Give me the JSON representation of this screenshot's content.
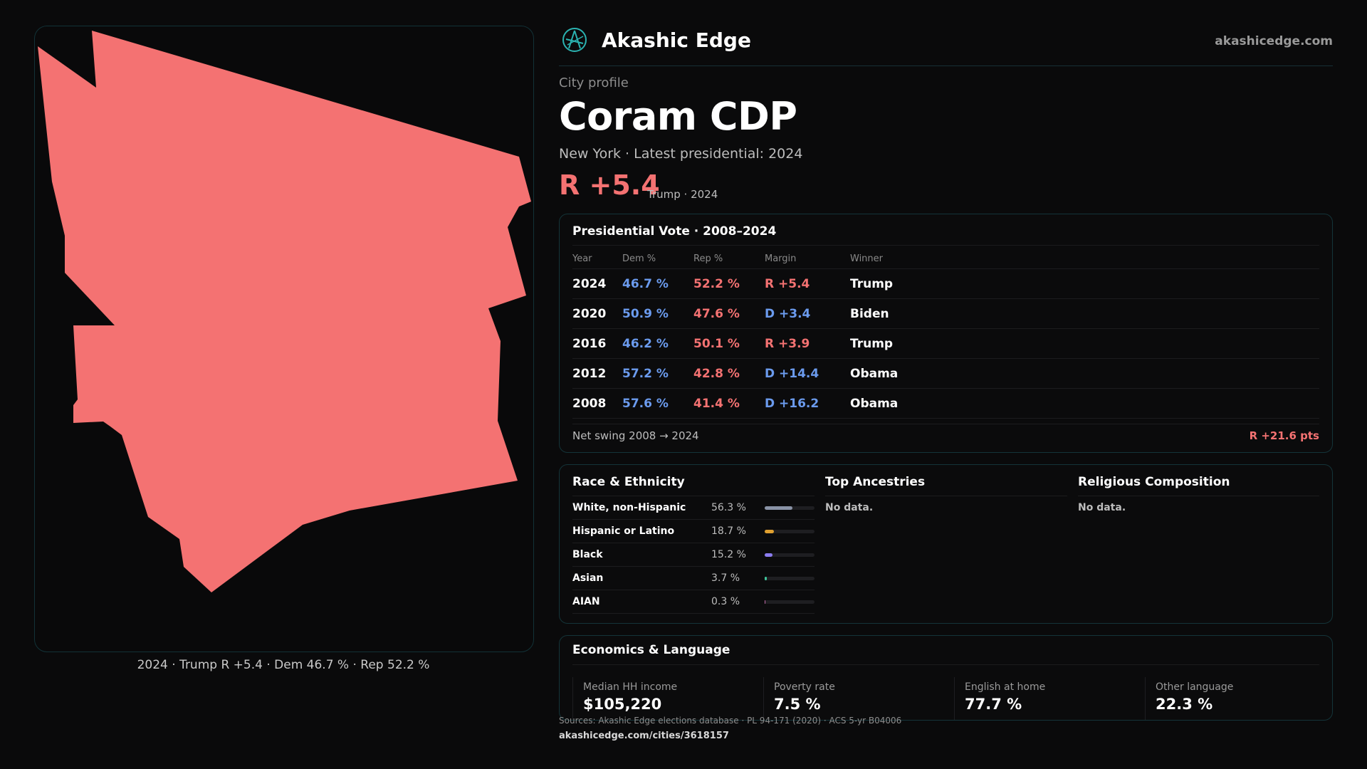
{
  "colors": {
    "rep": "#f47272",
    "dem": "#6b9bee",
    "accent": "#2bb3b1",
    "background": "#0a0a0b"
  },
  "header": {
    "brand": "Akashic Edge",
    "domain": "akashicedge.com",
    "logo_icon": "akashic-logo-icon"
  },
  "profile": {
    "label": "City profile",
    "name": "Coram CDP",
    "subline": "New York · Latest presidential: 2024",
    "margin": "R +5.4",
    "margin_sub": "Trump · 2024"
  },
  "map": {
    "caption": "2024 · Trump R +5.4 · Dem 46.7 % · Rep 52.2 %",
    "fill": "#f47272"
  },
  "vote": {
    "title": "Presidential Vote · 2008–2024",
    "headers": {
      "year": "Year",
      "dem": "Dem %",
      "rep": "Rep %",
      "margin": "Margin",
      "winner": "Winner"
    },
    "rows": [
      {
        "year": "2024",
        "dem": "46.7 %",
        "rep": "52.2 %",
        "margin": "R +5.4",
        "winner": "Trump",
        "party": "R"
      },
      {
        "year": "2020",
        "dem": "50.9 %",
        "rep": "47.6 %",
        "margin": "D +3.4",
        "winner": "Biden",
        "party": "D"
      },
      {
        "year": "2016",
        "dem": "46.2 %",
        "rep": "50.1 %",
        "margin": "R +3.9",
        "winner": "Trump",
        "party": "R"
      },
      {
        "year": "2012",
        "dem": "57.2 %",
        "rep": "42.8 %",
        "margin": "D +14.4",
        "winner": "Obama",
        "party": "D"
      },
      {
        "year": "2008",
        "dem": "57.6 %",
        "rep": "41.4 %",
        "margin": "D +16.2",
        "winner": "Obama",
        "party": "D"
      }
    ],
    "swing_label": "Net swing 2008 → 2024",
    "swing_value": "R +21.6 pts"
  },
  "race": {
    "title": "Race & Ethnicity",
    "rows": [
      {
        "name": "White, non-Hispanic",
        "pct": "56.3 %",
        "value": 56.3,
        "color": "#8a93a6"
      },
      {
        "name": "Hispanic or Latino",
        "pct": "18.7 %",
        "value": 18.7,
        "color": "#e0a030"
      },
      {
        "name": "Black",
        "pct": "15.2 %",
        "value": 15.2,
        "color": "#8b7cf0"
      },
      {
        "name": "Asian",
        "pct": "3.7 %",
        "value": 3.7,
        "color": "#3fc49a"
      },
      {
        "name": "AIAN",
        "pct": "0.3 %",
        "value": 0.3,
        "color": "#c06aa8"
      }
    ]
  },
  "ancestries": {
    "title": "Top Ancestries",
    "empty": "No data."
  },
  "religion": {
    "title": "Religious Composition",
    "empty": "No data."
  },
  "economics": {
    "title": "Economics & Language",
    "stats": [
      {
        "label": "Median HH income",
        "value": "$105,220"
      },
      {
        "label": "Poverty rate",
        "value": "7.5 %"
      },
      {
        "label": "English at home",
        "value": "77.7 %"
      },
      {
        "label": "Other language",
        "value": "22.3 %"
      }
    ]
  },
  "footer": {
    "sources": "Sources: Akashic Edge elections database · PL 94-171 (2020) · ACS 5-yr B04006",
    "url": "akashicedge.com/cities/3618157"
  }
}
